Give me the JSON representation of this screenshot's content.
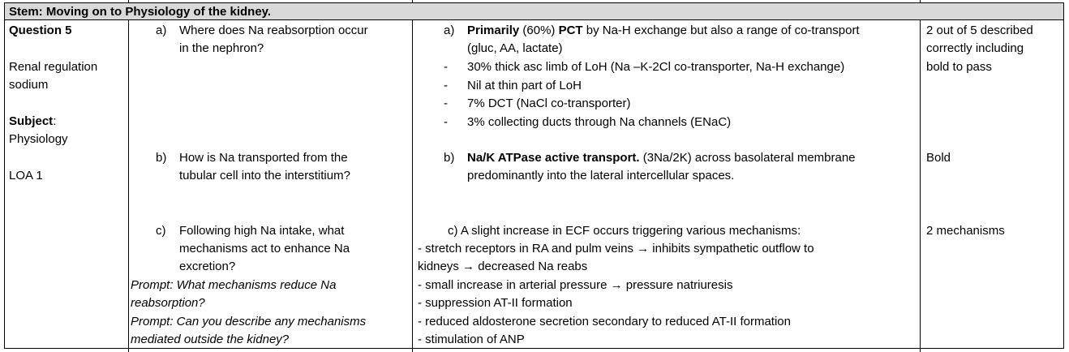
{
  "stem": "Stem: Moving on to Physiology of the kidney.",
  "left": {
    "question": "Question 5",
    "topic_line1": "Renal regulation",
    "topic_line2": "sodium",
    "subject_label": "Subject",
    "subject_colon": ":",
    "subject_value": "Physiology",
    "loa": "LOA 1"
  },
  "questions": {
    "a_marker": "a)",
    "a_lines": [
      "Where does Na reabsorption occur",
      "in the nephron?"
    ],
    "b_marker": "b)",
    "b_lines": [
      "How is Na transported from the",
      "tubular cell into the interstitium?"
    ],
    "c_marker": "c)",
    "c_lines": [
      "Following high Na intake, what",
      "mechanisms act to enhance Na",
      "excretion?"
    ],
    "prompts": [
      "Prompt: What mechanisms reduce Na",
      "reabsorption?",
      "Prompt: Can you describe any mechanisms",
      "mediated outside the kidney?"
    ]
  },
  "answers": {
    "a_marker": "a)",
    "a_bold1": "Primarily",
    "a_mid": " (60%) ",
    "a_bold2": "PCT",
    "a_rest": " by Na-H exchange but also a range of co-transport",
    "a_line2": "(gluc, AA, lactate)",
    "dash": "-",
    "a_bullets": [
      "30% thick asc limb of LoH (Na –K-2Cl co-transporter, Na-H exchange)",
      "Nil at thin part of LoH",
      "7% DCT (NaCl co-transporter)",
      "3% collecting ducts through Na channels (ENaC)"
    ],
    "b_marker": "b)",
    "b_bold": "Na/K ATPase active transport.",
    "b_rest": "  (3Na/2K) across basolateral membrane",
    "b_line2": "predominantly into the lateral intercellular spaces.",
    "c_line1": "c)  A slight increase in ECF occurs triggering various mechanisms:",
    "c_lines": [
      "- stretch receptors in RA and pulm veins → inhibits sympathetic outflow to",
      "kidneys → decreased Na reabs",
      "- small increase in arterial pressure → pressure natriuresis",
      "- suppression AT-II formation",
      "- reduced aldosterone secretion secondary to reduced AT-II formation",
      "- stimulation of ANP"
    ]
  },
  "marks": {
    "a_lines": [
      "2 out of 5 described",
      "correctly including",
      "bold to pass"
    ],
    "b": "Bold",
    "c": "2 mechanisms"
  }
}
